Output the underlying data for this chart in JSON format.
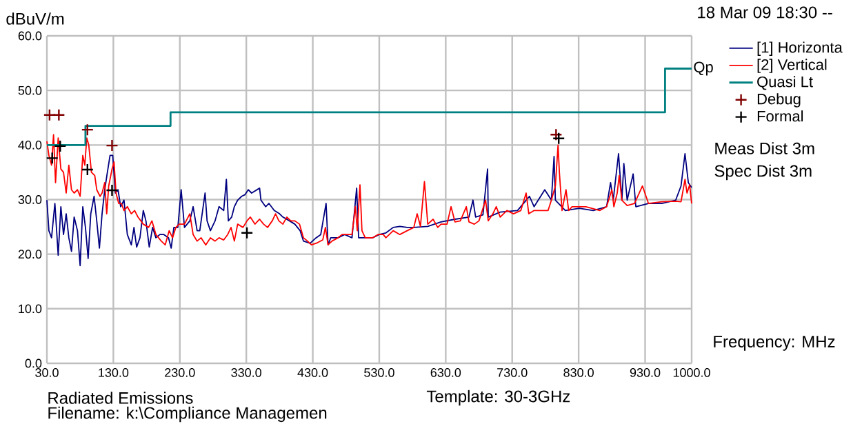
{
  "chart_data": {
    "type": "line",
    "xlabel": "Frequency: MHz",
    "ylabel": "dBuV/m",
    "xlim": [
      30,
      1000
    ],
    "ylim": [
      0,
      60
    ],
    "xticks": [
      {
        "value": 30,
        "label": "30.0"
      },
      {
        "value": 130,
        "label": "130.0"
      },
      {
        "value": 230,
        "label": "230.0"
      },
      {
        "value": 330,
        "label": "330.0"
      },
      {
        "value": 430,
        "label": "430.0"
      },
      {
        "value": 530,
        "label": "530.0"
      },
      {
        "value": 630,
        "label": "630.0"
      },
      {
        "value": 730,
        "label": "730.0"
      },
      {
        "value": 830,
        "label": "830.0"
      },
      {
        "value": 930,
        "label": "930.0"
      },
      {
        "value": 1000,
        "label": "1000.0"
      }
    ],
    "yticks": [
      {
        "value": 0,
        "label": "0.0"
      },
      {
        "value": 10,
        "label": "10.0"
      },
      {
        "value": 20,
        "label": "20.0"
      },
      {
        "value": 30,
        "label": "30.0"
      },
      {
        "value": 40,
        "label": "40.0"
      },
      {
        "value": 50,
        "label": "50.0"
      },
      {
        "value": 60,
        "label": "60.0"
      }
    ],
    "grid": true,
    "legend": "right",
    "series": [
      {
        "name": "[1] Horizonta",
        "color": "#000080",
        "x": [
          30,
          33,
          37,
          42,
          47,
          51,
          55,
          59,
          63,
          67,
          71,
          76,
          80,
          84,
          88,
          92,
          96,
          101,
          105,
          109,
          113,
          117,
          121,
          125,
          129,
          133,
          137,
          141,
          146,
          151,
          157,
          161,
          165,
          170,
          175,
          179,
          184,
          189,
          194,
          200,
          206,
          213,
          217,
          221,
          227,
          232,
          237,
          245,
          250,
          256,
          260,
          268,
          271,
          276,
          283,
          289,
          296,
          300,
          303,
          308,
          312,
          317,
          323,
          328,
          333,
          338,
          350,
          352,
          359,
          364,
          372,
          380,
          385,
          395,
          403,
          411,
          416,
          426,
          435,
          442,
          450,
          453,
          457,
          468,
          478,
          489,
          496,
          499,
          509,
          520,
          530,
          540,
          551,
          561,
          572,
          582,
          603,
          623,
          644,
          665,
          671,
          675,
          686,
          693,
          694,
          712,
          738,
          756,
          763,
          779,
          789,
          793,
          795,
          810,
          831,
          852,
          872,
          878,
          882,
          890,
          895,
          898,
          903,
          912,
          916,
          935,
          955,
          976,
          984,
          990,
          995,
          1000
        ],
        "values": [
          29.9,
          24.3,
          23.0,
          29.3,
          19.8,
          28.7,
          23.6,
          27.4,
          23.0,
          20.5,
          26.8,
          24.3,
          17.9,
          28.7,
          24.9,
          19.2,
          27.4,
          30.6,
          26.1,
          21.1,
          27.4,
          31.8,
          35.0,
          38.1,
          38.1,
          31.2,
          31.8,
          28.7,
          29.9,
          23.6,
          21.7,
          24.9,
          21.3,
          23.0,
          28.0,
          26.1,
          21.3,
          24.9,
          23.0,
          23.6,
          23.6,
          23.0,
          21.1,
          24.9,
          24.9,
          31.8,
          24.9,
          26.1,
          28.7,
          24.3,
          24.3,
          31.2,
          26.1,
          24.3,
          26.1,
          28.7,
          28.0,
          33.7,
          26.1,
          26.8,
          28.7,
          29.9,
          30.6,
          30.9,
          31.8,
          31.2,
          32.1,
          29.9,
          28.7,
          29.3,
          28.0,
          27.4,
          26.8,
          26.1,
          25.5,
          24.3,
          22.4,
          22.0,
          23.0,
          23.6,
          29.3,
          21.7,
          23.0,
          23.0,
          23.6,
          23.0,
          32.1,
          23.0,
          23.0,
          23.0,
          23.6,
          23.9,
          24.9,
          25.1,
          24.9,
          24.9,
          25.1,
          25.9,
          26.4,
          26.8,
          29.9,
          26.8,
          27.2,
          35.6,
          26.8,
          27.7,
          28.0,
          30.6,
          28.7,
          31.8,
          29.9,
          37.9,
          29.9,
          28.0,
          28.4,
          28.0,
          28.7,
          33.1,
          29.9,
          38.4,
          29.9,
          36.6,
          29.9,
          34.7,
          28.7,
          29.3,
          29.3,
          29.9,
          32.5,
          38.4,
          33.1,
          32.2
        ]
      },
      {
        "name": "[2] Vertical",
        "color": "#ff0000",
        "x": [
          30,
          33,
          37,
          40,
          43,
          47,
          51,
          55,
          59,
          63,
          67,
          71,
          76,
          80,
          84,
          87,
          90,
          93,
          97,
          102,
          105,
          110,
          113,
          117,
          120,
          123,
          128,
          131,
          134,
          138,
          142,
          146,
          151,
          157,
          162,
          167,
          175,
          183,
          188,
          194,
          202,
          208,
          214,
          219,
          224,
          229,
          237,
          245,
          250,
          256,
          262,
          269,
          276,
          283,
          289,
          296,
          302,
          307,
          312,
          317,
          325,
          331,
          336,
          343,
          350,
          356,
          362,
          369,
          374,
          379,
          385,
          391,
          397,
          403,
          410,
          416,
          422,
          428,
          437,
          445,
          449,
          453,
          459,
          468,
          474,
          480,
          489,
          494,
          497,
          501,
          504,
          509,
          520,
          528,
          536,
          540,
          551,
          561,
          572,
          582,
          587,
          592,
          598,
          603,
          611,
          618,
          623,
          632,
          638,
          644,
          652,
          661,
          665,
          673,
          680,
          690,
          694,
          701,
          706,
          712,
          722,
          732,
          743,
          751,
          755,
          763,
          774,
          784,
          789,
          795,
          799,
          801,
          805,
          811,
          815,
          820,
          841,
          862,
          872,
          880,
          883,
          888,
          891,
          895,
          903,
          914,
          926,
          935,
          955,
          976,
          984,
          990,
          993,
          997,
          1000
        ],
        "values": [
          40.7,
          38.1,
          36.3,
          41.9,
          33.1,
          41.3,
          35.6,
          35.0,
          31.2,
          36.3,
          31.8,
          31.2,
          31.8,
          30.6,
          38.1,
          36.3,
          41.3,
          40.0,
          35.0,
          34.4,
          31.8,
          30.6,
          31.2,
          33.1,
          27.4,
          32.5,
          35.6,
          36.9,
          31.2,
          29.3,
          29.3,
          28.0,
          28.7,
          27.4,
          28.0,
          26.8,
          25.5,
          24.9,
          26.1,
          23.6,
          22.4,
          21.7,
          24.3,
          23.0,
          24.9,
          25.5,
          25.5,
          27.4,
          23.6,
          22.4,
          23.0,
          21.7,
          23.0,
          22.4,
          23.0,
          22.6,
          23.6,
          24.9,
          22.4,
          25.5,
          24.9,
          26.1,
          26.8,
          25.5,
          26.4,
          25.5,
          24.9,
          26.1,
          27.4,
          26.1,
          25.5,
          26.8,
          26.1,
          26.1,
          25.5,
          23.0,
          22.4,
          21.7,
          22.1,
          22.6,
          24.9,
          21.7,
          22.4,
          23.0,
          23.6,
          23.6,
          23.6,
          28.7,
          24.3,
          32.7,
          24.3,
          23.0,
          23.0,
          23.6,
          23.6,
          23.0,
          24.3,
          23.6,
          24.3,
          24.9,
          27.4,
          25.1,
          33.3,
          25.5,
          26.4,
          24.9,
          25.5,
          25.5,
          28.7,
          25.9,
          26.1,
          28.7,
          25.9,
          25.5,
          26.1,
          29.9,
          26.1,
          27.4,
          28.7,
          26.8,
          28.0,
          27.4,
          28.0,
          31.2,
          27.4,
          28.0,
          28.0,
          28.0,
          29.9,
          32.5,
          40.0,
          35.0,
          28.0,
          31.8,
          28.0,
          28.7,
          28.7,
          28.0,
          28.7,
          31.8,
          28.7,
          31.2,
          34.4,
          29.9,
          28.9,
          29.3,
          32.5,
          29.3,
          29.6,
          29.7,
          29.6,
          33.7,
          31.2,
          32.7,
          29.3
        ]
      },
      {
        "name": "Quasi Lt",
        "type": "step",
        "color": "#008080",
        "x": [
          30,
          88,
          216,
          960,
          1000
        ],
        "values": [
          40,
          43.5,
          46,
          54,
          54
        ]
      },
      {
        "name": "Debug",
        "type": "scatter",
        "marker": "cross",
        "color": "#800000",
        "x": [
          34,
          48,
          91,
          128,
          796
        ],
        "values": [
          45.5,
          45.5,
          42.8,
          39.9,
          41.9
        ]
      },
      {
        "name": "Formal",
        "type": "scatter",
        "marker": "cross",
        "color": "#000000",
        "x": [
          38,
          50,
          91,
          128,
          331,
          800
        ],
        "values": [
          37.6,
          39.8,
          35.5,
          31.7,
          23.9,
          41.2
        ]
      }
    ],
    "annotations": [
      "18 Mar 09 18:30 --",
      "Meas Dist 3m",
      "Spec Dist 3m",
      "Radiated Emissions",
      "Filename: k:\\Compliance Managemen",
      "Template: 30-3GHz",
      {
        "text": "Qp",
        "x": 1000,
        "y": 54
      }
    ]
  }
}
